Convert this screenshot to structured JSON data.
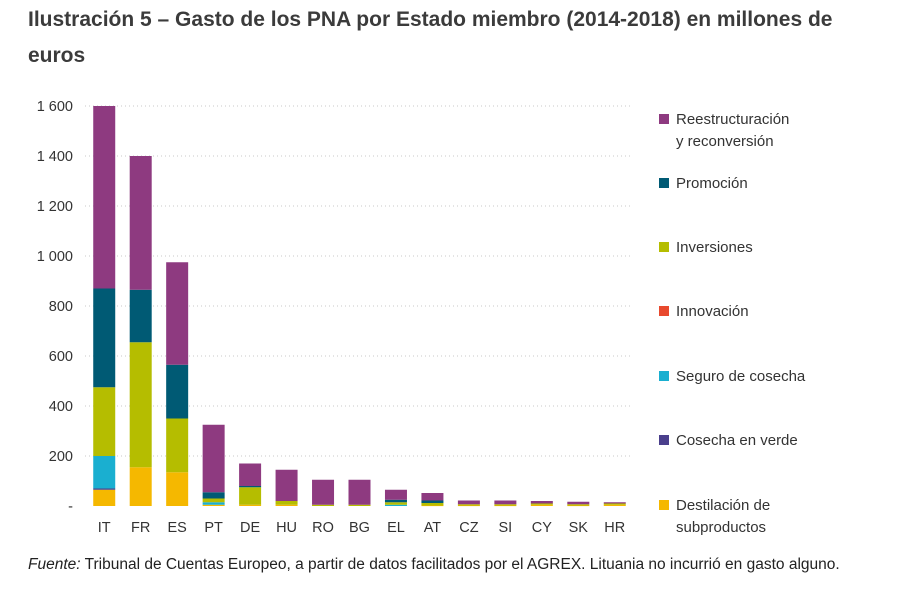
{
  "chart_data": {
    "type": "bar",
    "stacked": true,
    "title": "Ilustración 5 – Gasto de los PNA por Estado miembro (2014-2018) en millones de euros",
    "xlabel": "",
    "ylabel": "",
    "ylim": [
      0,
      1600
    ],
    "yticks": [
      {
        "value": 0,
        "label": "-"
      },
      {
        "value": 200,
        "label": "200"
      },
      {
        "value": 400,
        "label": "400"
      },
      {
        "value": 600,
        "label": "600"
      },
      {
        "value": 800,
        "label": "800"
      },
      {
        "value": 1000,
        "label": "1 000"
      },
      {
        "value": 1200,
        "label": "1 200"
      },
      {
        "value": 1400,
        "label": "1 400"
      },
      {
        "value": 1600,
        "label": "1 600"
      }
    ],
    "grid": true,
    "legend_position": "right",
    "categories": [
      "IT",
      "FR",
      "ES",
      "PT",
      "DE",
      "HU",
      "RO",
      "BG",
      "EL",
      "AT",
      "CZ",
      "SI",
      "CY",
      "SK",
      "HR"
    ],
    "series": [
      {
        "name": "Destilación de subproductos",
        "color": "#f5b800",
        "values": [
          65,
          155,
          135,
          5,
          5,
          5,
          0,
          0,
          0,
          2,
          2,
          2,
          5,
          2,
          5
        ]
      },
      {
        "name": "Cosecha en verde",
        "color": "#4a3f8c",
        "values": [
          5,
          0,
          0,
          0,
          0,
          0,
          0,
          0,
          0,
          0,
          0,
          0,
          0,
          0,
          0
        ]
      },
      {
        "name": "Seguro de cosecha",
        "color": "#1aafd0",
        "values": [
          130,
          0,
          0,
          10,
          0,
          0,
          0,
          0,
          5,
          0,
          0,
          0,
          0,
          0,
          0
        ]
      },
      {
        "name": "Innovación",
        "color": "#e8492e",
        "values": [
          0,
          0,
          0,
          0,
          0,
          0,
          0,
          0,
          0,
          0,
          0,
          0,
          0,
          0,
          0
        ]
      },
      {
        "name": "Inversiones",
        "color": "#b5bd00",
        "values": [
          275,
          500,
          215,
          15,
          70,
          15,
          5,
          5,
          10,
          10,
          5,
          5,
          5,
          5,
          5
        ]
      },
      {
        "name": "Promoción",
        "color": "#005a74",
        "values": [
          395,
          210,
          215,
          25,
          5,
          0,
          0,
          0,
          10,
          10,
          0,
          0,
          0,
          0,
          0
        ]
      },
      {
        "name": "Reestructuración y reconversión",
        "color": "#8e3a80",
        "values": [
          730,
          535,
          410,
          270,
          90,
          125,
          100,
          100,
          40,
          30,
          15,
          15,
          10,
          10,
          5
        ]
      }
    ]
  },
  "legend": [
    {
      "lines": [
        "Reestructuración",
        "y reconversión"
      ],
      "color": "#8e3a80"
    },
    {
      "lines": [
        "Promoción"
      ],
      "color": "#005a74"
    },
    {
      "lines": [
        "Inversiones"
      ],
      "color": "#b5bd00"
    },
    {
      "lines": [
        "Innovación"
      ],
      "color": "#e8492e"
    },
    {
      "lines": [
        "Seguro de cosecha"
      ],
      "color": "#1aafd0"
    },
    {
      "lines": [
        "Cosecha en verde"
      ],
      "color": "#4a3f8c"
    },
    {
      "lines": [
        "Destilación de",
        "subproductos"
      ],
      "color": "#f5b800"
    }
  ],
  "source": {
    "label": "Fuente:",
    "text": " Tribunal de Cuentas Europeo, a partir de datos facilitados por el AGREX. Lituania no incurrió en gasto alguno."
  }
}
